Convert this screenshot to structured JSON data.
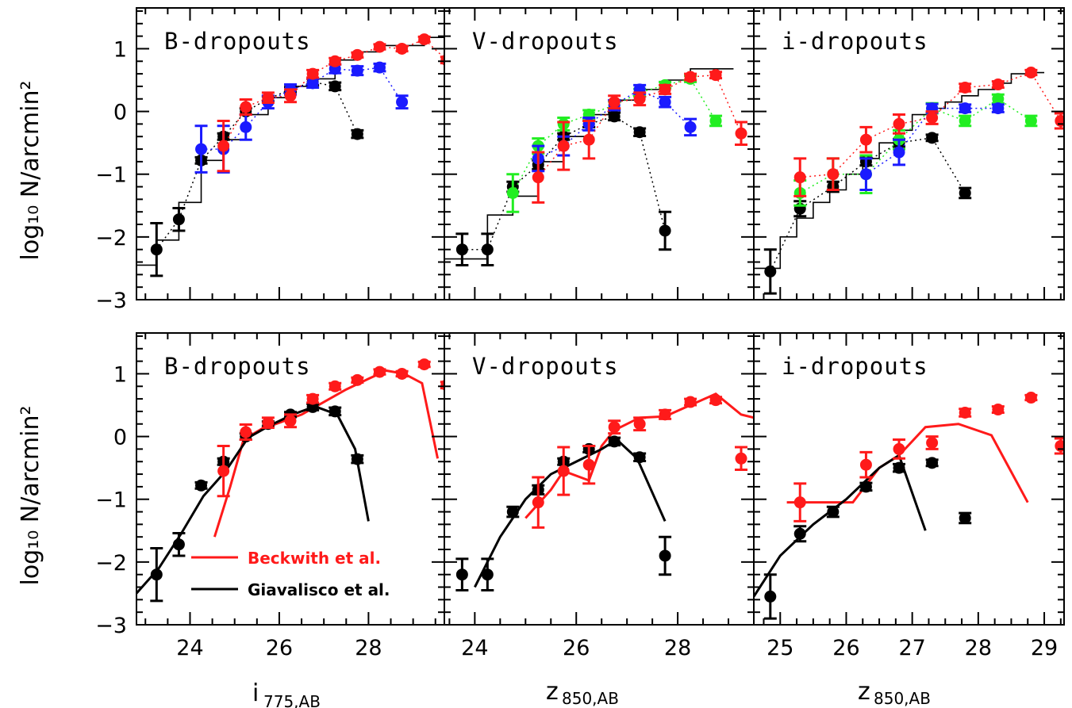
{
  "colors": {
    "red": "#ff1a1a",
    "blue": "#1a1aff",
    "green": "#22ee22",
    "black": "#000000"
  },
  "axes": {
    "ylabel": "log₁₀ N/arcmin²",
    "xlabels": [
      {
        "main": "i",
        "sub": "775,AB"
      },
      {
        "main": "z",
        "sub": "850,AB"
      },
      {
        "main": "z",
        "sub": "850,AB"
      }
    ],
    "yticks": [
      "−3",
      "−2",
      "−1",
      "0",
      "1"
    ]
  },
  "legend": {
    "beckwith": "Beckwith et al.",
    "giavalisco": "Giavalisco et al."
  },
  "chart_data": [
    {
      "type": "scatter",
      "row": "top",
      "col": 0,
      "title": "B-dropouts",
      "xlim": [
        22.8,
        29.7
      ],
      "ylim": [
        -3,
        1.65
      ],
      "xticks": [
        24,
        26,
        28
      ],
      "histogram": {
        "edges": [
          22.75,
          23.25,
          23.75,
          24.25,
          24.75,
          25.25,
          25.75,
          26.25,
          26.75,
          27.25,
          27.75,
          28.25,
          28.75,
          29.25,
          29.7
        ],
        "values": [
          -2.45,
          -2.05,
          -1.45,
          -0.78,
          -0.45,
          -0.05,
          0.22,
          0.4,
          0.52,
          0.82,
          0.95,
          1.05,
          1.05,
          1.18
        ]
      },
      "series": [
        {
          "color": "black",
          "x": [
            23.25,
            23.75,
            24.25,
            24.75,
            25.25,
            25.75,
            26.25,
            26.75,
            27.25,
            27.75
          ],
          "y": [
            -2.2,
            -1.72,
            -0.78,
            -0.4,
            0.0,
            0.2,
            0.35,
            0.47,
            0.4,
            -0.36
          ],
          "err": [
            0.42,
            0.18,
            0.05,
            0.05,
            0.05,
            0.04,
            0.04,
            0.05,
            0.06,
            0.06
          ]
        },
        {
          "color": "blue",
          "x": [
            24.25,
            24.75,
            25.25,
            25.75,
            26.25,
            26.75,
            27.25,
            27.75,
            28.25,
            28.75
          ],
          "y": [
            -0.6,
            -0.6,
            -0.25,
            0.15,
            0.35,
            0.45,
            0.68,
            0.65,
            0.7,
            0.15
          ],
          "err": [
            0.37,
            0.37,
            0.2,
            0.1,
            0.08,
            0.07,
            0.07,
            0.07,
            0.06,
            0.1
          ]
        },
        {
          "color": "red",
          "x": [
            24.75,
            25.25,
            25.75,
            26.25,
            26.75,
            27.25,
            27.75,
            28.25,
            28.75,
            29.25,
            29.75
          ],
          "y": [
            -0.55,
            0.07,
            0.22,
            0.25,
            0.6,
            0.8,
            0.9,
            1.03,
            1.0,
            1.15,
            0.82
          ],
          "err": [
            0.4,
            0.12,
            0.08,
            0.1,
            0.06,
            0.05,
            0.04,
            0.04,
            0.04,
            0.04,
            0.05
          ]
        }
      ]
    },
    {
      "type": "scatter",
      "row": "top",
      "col": 1,
      "title": "V-dropouts",
      "xlim": [
        23.4,
        29.5
      ],
      "ylim": [
        -3,
        1.65
      ],
      "xticks": [
        24,
        26,
        28
      ],
      "histogram": {
        "edges": [
          23.4,
          24.25,
          24.75,
          25.25,
          25.75,
          26.25,
          26.75,
          27.25,
          27.75,
          28.25,
          28.75,
          29.1
        ],
        "values": [
          -2.35,
          -1.65,
          -1.35,
          -0.8,
          -0.4,
          -0.05,
          0.18,
          0.35,
          0.5,
          0.68,
          0.68
        ]
      },
      "series": [
        {
          "color": "black",
          "x": [
            23.75,
            24.25,
            24.75,
            25.25,
            25.75,
            26.25,
            26.75,
            27.25,
            27.75
          ],
          "y": [
            -2.2,
            -2.2,
            -1.2,
            -0.85,
            -0.4,
            -0.2,
            -0.08,
            -0.33,
            -1.9
          ],
          "err": [
            0.25,
            0.25,
            0.08,
            0.07,
            0.05,
            0.05,
            0.06,
            0.06,
            0.3
          ]
        },
        {
          "color": "green",
          "x": [
            24.75,
            25.25,
            25.75,
            26.25,
            26.75,
            27.25,
            27.75,
            28.25,
            28.75
          ],
          "y": [
            -1.3,
            -0.55,
            -0.2,
            -0.05,
            0.1,
            0.3,
            0.42,
            0.52,
            -0.15
          ],
          "err": [
            0.3,
            0.12,
            0.1,
            0.07,
            0.06,
            0.06,
            0.05,
            0.05,
            0.08
          ]
        },
        {
          "color": "blue",
          "x": [
            25.25,
            25.75,
            26.25,
            26.75,
            27.25,
            27.75,
            28.25
          ],
          "y": [
            -0.75,
            -0.55,
            -0.2,
            0.1,
            0.35,
            0.15,
            -0.25
          ],
          "err": [
            0.2,
            0.15,
            0.1,
            0.08,
            0.07,
            0.08,
            0.13
          ]
        },
        {
          "color": "red",
          "x": [
            25.25,
            25.75,
            26.25,
            26.75,
            27.25,
            27.75,
            28.25,
            28.75,
            29.25
          ],
          "y": [
            -1.05,
            -0.55,
            -0.45,
            0.15,
            0.2,
            0.35,
            0.55,
            0.58,
            -0.35
          ],
          "err": [
            0.4,
            0.38,
            0.3,
            0.1,
            0.1,
            0.07,
            0.05,
            0.05,
            0.18
          ]
        }
      ]
    },
    {
      "type": "scatter",
      "row": "top",
      "col": 2,
      "title": "i-dropouts",
      "xlim": [
        24.6,
        29.3
      ],
      "ylim": [
        -3,
        1.65
      ],
      "xticks": [
        25,
        26,
        27,
        28,
        29
      ],
      "histogram": {
        "edges": [
          24.6,
          25.0,
          25.25,
          25.5,
          25.75,
          26.0,
          26.25,
          26.5,
          26.75,
          27.0,
          27.25,
          27.5,
          27.75,
          28.0,
          28.25,
          28.5,
          28.75,
          29.0
        ],
        "values": [
          -2.5,
          -2.0,
          -1.7,
          -1.45,
          -1.25,
          -1.0,
          -0.75,
          -0.5,
          -0.3,
          -0.05,
          0.05,
          0.15,
          0.25,
          0.35,
          0.45,
          0.6,
          0.62
        ]
      },
      "series": [
        {
          "color": "black",
          "x": [
            24.85,
            25.3,
            25.8,
            26.3,
            26.8,
            27.3,
            27.8
          ],
          "y": [
            -2.55,
            -1.55,
            -1.2,
            -0.8,
            -0.5,
            -0.42,
            -1.3
          ],
          "err": [
            0.35,
            0.12,
            0.08,
            0.06,
            0.06,
            0.05,
            0.08
          ]
        },
        {
          "color": "green",
          "x": [
            25.3,
            25.8,
            26.3,
            26.8,
            27.3,
            27.8,
            28.3,
            28.8
          ],
          "y": [
            -1.3,
            -1.0,
            -1.0,
            -0.45,
            0.05,
            -0.15,
            0.2,
            -0.15
          ],
          "err": [
            0.2,
            0.25,
            0.3,
            0.15,
            0.08,
            0.08,
            0.07,
            0.08
          ]
        },
        {
          "color": "blue",
          "x": [
            26.3,
            26.8,
            27.3,
            27.8,
            28.3
          ],
          "y": [
            -1.0,
            -0.65,
            0.05,
            0.05,
            0.05
          ],
          "err": [
            0.25,
            0.2,
            0.07,
            0.06,
            0.06
          ]
        },
        {
          "color": "red",
          "x": [
            25.3,
            25.8,
            26.3,
            26.8,
            27.3,
            27.8,
            28.3,
            28.8,
            29.25
          ],
          "y": [
            -1.05,
            -1.0,
            -0.45,
            -0.2,
            -0.1,
            0.38,
            0.43,
            0.62,
            -0.15
          ],
          "err": [
            0.3,
            0.25,
            0.2,
            0.15,
            0.1,
            0.06,
            0.05,
            0.04,
            0.12
          ]
        }
      ]
    },
    {
      "type": "scatter",
      "row": "bottom",
      "col": 0,
      "title": "B-dropouts",
      "xlim": [
        22.8,
        29.7
      ],
      "ylim": [
        -3,
        1.65
      ],
      "xticks": [
        24,
        26,
        28
      ],
      "series": [
        {
          "color": "black",
          "x": [
            23.25,
            23.75,
            24.25,
            24.75,
            25.25,
            25.75,
            26.25,
            26.75,
            27.25,
            27.75
          ],
          "y": [
            -2.2,
            -1.72,
            -0.78,
            -0.4,
            0.0,
            0.2,
            0.35,
            0.47,
            0.4,
            -0.36
          ],
          "err": [
            0.42,
            0.18,
            0.05,
            0.05,
            0.05,
            0.04,
            0.04,
            0.05,
            0.06,
            0.06
          ]
        },
        {
          "color": "red",
          "x": [
            24.75,
            25.25,
            25.75,
            26.25,
            26.75,
            27.25,
            27.75,
            28.25,
            28.75,
            29.25,
            29.75
          ],
          "y": [
            -0.55,
            0.07,
            0.22,
            0.25,
            0.6,
            0.8,
            0.9,
            1.03,
            1.0,
            1.15,
            0.82
          ],
          "err": [
            0.4,
            0.12,
            0.08,
            0.1,
            0.06,
            0.05,
            0.04,
            0.04,
            0.04,
            0.04,
            0.05
          ]
        }
      ],
      "models": [
        {
          "color": "red",
          "x": [
            24.55,
            24.9,
            25.2,
            25.6,
            26.0,
            26.5,
            27.0,
            27.5,
            28.0,
            28.4,
            28.8,
            29.2,
            29.55
          ],
          "y": [
            -1.6,
            -0.8,
            -0.05,
            0.12,
            0.22,
            0.35,
            0.55,
            0.75,
            0.92,
            1.05,
            1.0,
            0.85,
            -0.35
          ]
        },
        {
          "color": "black",
          "x": [
            22.8,
            23.3,
            23.8,
            24.3,
            24.8,
            25.3,
            25.8,
            26.3,
            26.8,
            27.3,
            27.7,
            28.0
          ],
          "y": [
            -2.5,
            -2.1,
            -1.55,
            -0.95,
            -0.55,
            -0.02,
            0.18,
            0.35,
            0.48,
            0.35,
            -0.2,
            -1.35
          ]
        }
      ]
    },
    {
      "type": "scatter",
      "row": "bottom",
      "col": 1,
      "title": "V-dropouts",
      "xlim": [
        23.4,
        29.5
      ],
      "ylim": [
        -3,
        1.65
      ],
      "xticks": [
        24,
        26,
        28
      ],
      "series": [
        {
          "color": "black",
          "x": [
            23.75,
            24.25,
            24.75,
            25.25,
            25.75,
            26.25,
            26.75,
            27.25,
            27.75
          ],
          "y": [
            -2.2,
            -2.2,
            -1.2,
            -0.85,
            -0.4,
            -0.2,
            -0.08,
            -0.33,
            -1.9
          ],
          "err": [
            0.25,
            0.25,
            0.08,
            0.07,
            0.05,
            0.05,
            0.06,
            0.06,
            0.3
          ]
        },
        {
          "color": "red",
          "x": [
            25.25,
            25.75,
            26.25,
            26.75,
            27.25,
            27.75,
            28.25,
            28.75,
            29.25
          ],
          "y": [
            -1.05,
            -0.55,
            -0.45,
            0.15,
            0.2,
            0.35,
            0.55,
            0.58,
            -0.35
          ],
          "err": [
            0.4,
            0.38,
            0.3,
            0.1,
            0.1,
            0.07,
            0.05,
            0.05,
            0.18
          ]
        }
      ],
      "models": [
        {
          "color": "red",
          "x": [
            25.0,
            25.5,
            25.75,
            26.25,
            26.5,
            26.75,
            27.25,
            27.75,
            28.25,
            28.75,
            29.25,
            29.5
          ],
          "y": [
            -1.3,
            -0.85,
            -0.55,
            -0.7,
            -0.15,
            0.1,
            0.3,
            0.32,
            0.5,
            0.68,
            0.35,
            0.3
          ]
        },
        {
          "color": "black",
          "x": [
            24.0,
            24.5,
            25.0,
            25.5,
            26.0,
            26.5,
            26.8,
            27.2,
            27.75
          ],
          "y": [
            -2.4,
            -1.6,
            -1.0,
            -0.6,
            -0.4,
            -0.2,
            -0.05,
            -0.35,
            -1.35
          ]
        }
      ]
    },
    {
      "type": "scatter",
      "row": "bottom",
      "col": 2,
      "title": "i-dropouts",
      "xlim": [
        24.6,
        29.3
      ],
      "ylim": [
        -3,
        1.65
      ],
      "xticks": [
        25,
        26,
        27,
        28,
        29
      ],
      "series": [
        {
          "color": "black",
          "x": [
            24.85,
            25.3,
            25.8,
            26.3,
            26.8,
            27.3,
            27.8
          ],
          "y": [
            -2.55,
            -1.55,
            -1.2,
            -0.8,
            -0.5,
            -0.42,
            -1.3
          ],
          "err": [
            0.35,
            0.12,
            0.08,
            0.06,
            0.06,
            0.05,
            0.08
          ]
        },
        {
          "color": "red",
          "x": [
            25.3,
            26.3,
            26.8,
            27.3,
            27.8,
            28.3,
            28.8,
            29.25
          ],
          "y": [
            -1.05,
            -0.45,
            -0.2,
            -0.1,
            0.38,
            0.43,
            0.62,
            -0.15
          ],
          "err": [
            0.3,
            0.2,
            0.15,
            0.1,
            0.06,
            0.05,
            0.04,
            0.12
          ]
        }
      ],
      "models": [
        {
          "color": "red",
          "x": [
            25.1,
            26.1,
            26.5,
            26.8,
            27.2,
            27.7,
            28.2,
            28.75
          ],
          "y": [
            -1.05,
            -1.05,
            -0.5,
            -0.3,
            0.15,
            0.2,
            0.02,
            -1.05
          ]
        },
        {
          "color": "black",
          "x": [
            24.6,
            25.0,
            25.5,
            26.0,
            26.5,
            26.8,
            27.2
          ],
          "y": [
            -2.55,
            -1.9,
            -1.4,
            -1.0,
            -0.5,
            -0.3,
            -1.5
          ]
        }
      ]
    }
  ]
}
